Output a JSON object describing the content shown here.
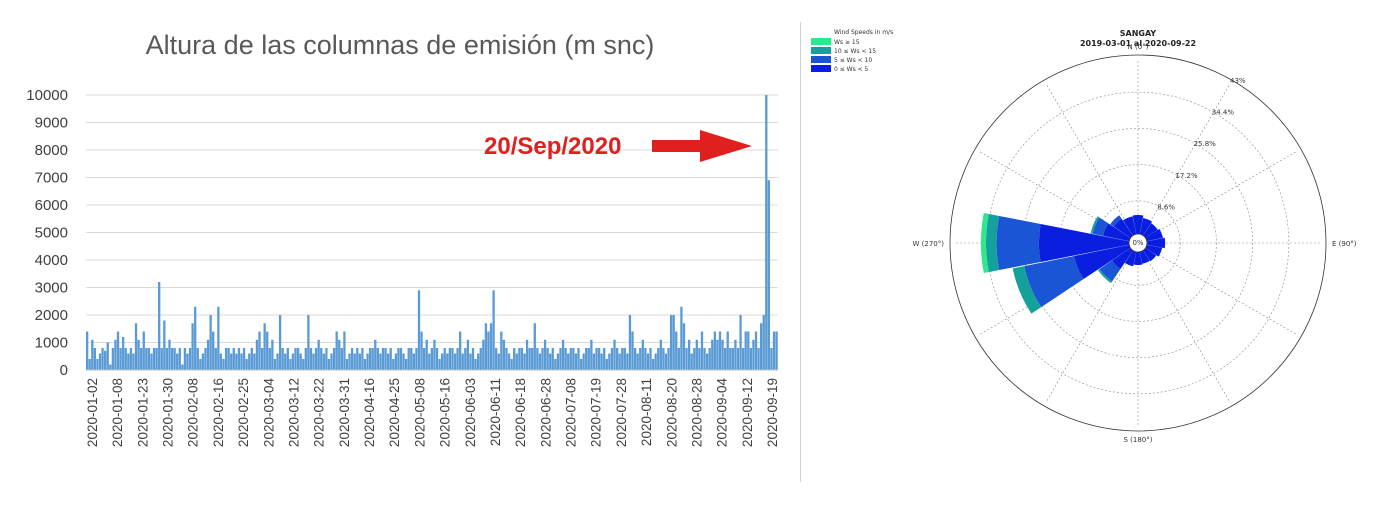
{
  "chart_data": [
    {
      "type": "bar",
      "title": "Altura de las columnas de emisión (m snc)",
      "xlabel": "",
      "ylabel": "",
      "ylim": [
        0,
        10000
      ],
      "yticks": [
        0,
        1000,
        2000,
        3000,
        4000,
        5000,
        6000,
        7000,
        8000,
        9000,
        10000
      ],
      "xticks": [
        "2020-01-02",
        "2020-01-08",
        "2020-01-23",
        "2020-01-30",
        "2020-02-08",
        "2020-02-16",
        "2020-02-25",
        "2020-03-04",
        "2020-03-12",
        "2020-03-22",
        "2020-03-31",
        "2020-04-16",
        "2020-04-25",
        "2020-05-08",
        "2020-05-16",
        "2020-06-03",
        "2020-06-11",
        "2020-06-18",
        "2020-06-28",
        "2020-07-08",
        "2020-07-19",
        "2020-07-28",
        "2020-08-11",
        "2020-08-20",
        "2020-08-28",
        "2020-09-04",
        "2020-09-12",
        "2020-09-19"
      ],
      "grid": true,
      "color": "#5b9bd5",
      "values": [
        1400,
        400,
        1100,
        800,
        400,
        600,
        800,
        700,
        1000,
        200,
        800,
        1100,
        1400,
        800,
        1200,
        800,
        600,
        800,
        600,
        1700,
        1100,
        800,
        1400,
        800,
        800,
        600,
        800,
        800,
        3200,
        800,
        1800,
        800,
        1100,
        800,
        800,
        600,
        800,
        200,
        800,
        600,
        800,
        1700,
        2300,
        800,
        400,
        600,
        800,
        1100,
        2000,
        1400,
        800,
        2300,
        600,
        400,
        800,
        800,
        600,
        800,
        600,
        800,
        600,
        800,
        400,
        600,
        800,
        600,
        1100,
        1400,
        800,
        1700,
        1400,
        800,
        1100,
        400,
        600,
        2000,
        800,
        600,
        800,
        400,
        600,
        800,
        800,
        600,
        400,
        800,
        2000,
        800,
        600,
        800,
        1100,
        800,
        600,
        800,
        400,
        600,
        800,
        1400,
        1100,
        800,
        1400,
        400,
        600,
        800,
        600,
        800,
        600,
        800,
        400,
        600,
        800,
        800,
        1100,
        800,
        600,
        800,
        800,
        600,
        800,
        400,
        600,
        800,
        800,
        600,
        400,
        800,
        800,
        600,
        800,
        2900,
        1400,
        800,
        1100,
        600,
        800,
        1100,
        800,
        400,
        600,
        800,
        600,
        800,
        800,
        600,
        800,
        1400,
        600,
        800,
        1100,
        600,
        800,
        400,
        600,
        800,
        1100,
        1700,
        1400,
        1700,
        2900,
        800,
        600,
        1400,
        1100,
        800,
        600,
        400,
        800,
        600,
        800,
        800,
        600,
        1100,
        800,
        800,
        1700,
        800,
        600,
        800,
        1100,
        800,
        600,
        800,
        400,
        600,
        800,
        1100,
        800,
        600,
        800,
        800,
        600,
        800,
        400,
        600,
        800,
        800,
        1100,
        600,
        800,
        800,
        600,
        800,
        400,
        600,
        800,
        1100,
        800,
        600,
        800,
        800,
        600,
        2000,
        1400,
        800,
        600,
        800,
        1100,
        800,
        600,
        800,
        400,
        600,
        800,
        1100,
        800,
        600,
        800,
        2000,
        2000,
        1400,
        800,
        2300,
        1700,
        800,
        1100,
        600,
        800,
        1100,
        800,
        1400,
        800,
        600,
        800,
        1100,
        1400,
        1100,
        1400,
        1100,
        800,
        1400,
        800,
        800,
        1100,
        800,
        2000,
        800,
        1400,
        1400,
        800,
        1100,
        1400,
        800,
        1700,
        2000,
        10000,
        6900,
        800,
        1400,
        1400
      ],
      "annotation": {
        "text": "20/Sep/2020",
        "arrow": "right",
        "color": "#e0201e"
      }
    },
    {
      "type": "polar-bar",
      "title": "SANGAY",
      "subtitle": "2019-03-01 al 2020-09-22",
      "direction_labels": {
        "n": "N (0°)",
        "e": "E (90°)",
        "s": "S (180°)",
        "w": "W (270°)"
      },
      "radial_labels": [
        "43%",
        "34.4%",
        "25.8%",
        "17.2%",
        "8.6%"
      ],
      "radial_ticks": [
        43,
        34.4,
        25.8,
        17.2,
        8.6
      ],
      "center_label": "0%",
      "rmax": 43,
      "legend": {
        "title": "Wind Speeds in m/s",
        "entries": [
          {
            "label": "Ws ≥ 15",
            "color": "#2ee88e"
          },
          {
            "label": "10 ≤ Ws < 15",
            "color": "#14a19c"
          },
          {
            "label": "5 ≤ Ws < 10",
            "color": "#1a55d6"
          },
          {
            "label": "0 ≤ Ws < 5",
            "color": "#0a1ee0"
          }
        ]
      },
      "sectors": [
        {
          "dir_deg": 0,
          "values": [
            5.2,
            0,
            0,
            0
          ]
        },
        {
          "dir_deg": 22.5,
          "values": [
            4.6,
            0,
            0,
            0
          ]
        },
        {
          "dir_deg": 45,
          "values": [
            4.2,
            0,
            0,
            0
          ]
        },
        {
          "dir_deg": 67.5,
          "values": [
            4.6,
            0,
            0,
            0
          ]
        },
        {
          "dir_deg": 90,
          "values": [
            5.0,
            0,
            0,
            0
          ]
        },
        {
          "dir_deg": 112.5,
          "values": [
            4.4,
            0,
            0,
            0
          ]
        },
        {
          "dir_deg": 135,
          "values": [
            3.8,
            0,
            0,
            0
          ]
        },
        {
          "dir_deg": 157.5,
          "values": [
            3.6,
            0,
            0,
            0
          ]
        },
        {
          "dir_deg": 180,
          "values": [
            3.8,
            0,
            0,
            0
          ]
        },
        {
          "dir_deg": 202.5,
          "values": [
            4.2,
            0,
            0,
            0
          ]
        },
        {
          "dir_deg": 225,
          "values": [
            6.0,
            3.5,
            0.5,
            0
          ]
        },
        {
          "dir_deg": 247.5,
          "values": [
            14.0,
            12.0,
            2.8,
            0
          ]
        },
        {
          "dir_deg": 270,
          "values": [
            22.0,
            10.0,
            2.5,
            1.2
          ]
        },
        {
          "dir_deg": 292.5,
          "values": [
            7.0,
            2.5,
            0.5,
            0
          ]
        },
        {
          "dir_deg": 315,
          "values": [
            5.5,
            1.0,
            0,
            0
          ]
        },
        {
          "dir_deg": 337.5,
          "values": [
            5.0,
            0,
            0,
            0
          ]
        }
      ]
    }
  ]
}
